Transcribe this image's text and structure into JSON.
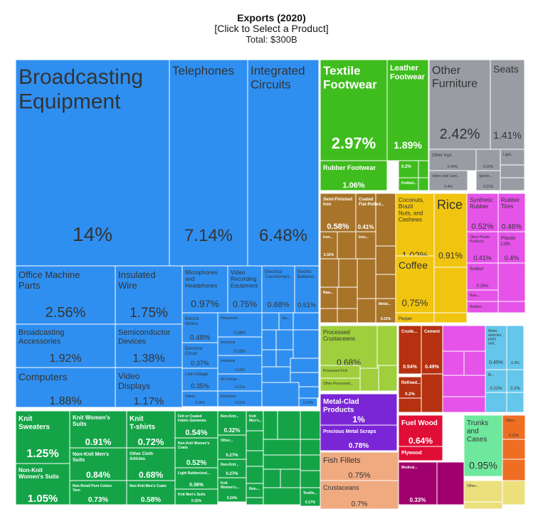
{
  "chart_data": {
    "type": "treemap",
    "title": "Exports (2020)",
    "subtitle": "[Click to Select a Product]",
    "total_label": "Total: $300B",
    "colors": {
      "electronics": "#2f8ff0",
      "textiles": "#14a447",
      "footwear": "#3fbd1e",
      "misc": "#9a9ca3",
      "wood": "#a8742a",
      "vegetables": "#f1c40f",
      "plastics": "#e553e9",
      "animal": "#9fcf3c",
      "minerals": "#b53110",
      "vehicles": "#65c6eb",
      "metals": "#7b26d6",
      "paper": "#e00d36",
      "hides": "#6ee89c",
      "transport": "#ee6e24",
      "fish": "#f0aa80",
      "chemicals": "#a0006d",
      "yellowish": "#ece07d"
    },
    "items": [
      {
        "label": "Broadcasting Equipment",
        "value": "14%",
        "group": "electronics",
        "lx": 0.03,
        "ly": 0.16,
        "fs": 30,
        "vs": 28
      },
      {
        "label": "Telephones",
        "value": "7.14%",
        "group": "electronics",
        "fs": 17,
        "vs": 24
      },
      {
        "label": "Integrated Circuits",
        "value": "6.48%",
        "group": "electronics",
        "fs": 17,
        "vs": 24
      },
      {
        "label": "Office Machine Parts",
        "value": "2.56%",
        "group": "electronics",
        "fs": 13,
        "vs": 20
      },
      {
        "label": "Insulated Wire",
        "value": "1.75%",
        "group": "electronics",
        "fs": 13,
        "vs": 19
      },
      {
        "label": "Broadcasting Accessories",
        "value": "1.92%",
        "group": "electronics",
        "fs": 11,
        "vs": 16
      },
      {
        "label": "Semiconductor Devices",
        "value": "1.38%",
        "group": "electronics",
        "fs": 11,
        "vs": 16
      },
      {
        "label": "Computers",
        "value": "1.88%",
        "group": "electronics",
        "fs": 14,
        "vs": 16
      },
      {
        "label": "Video Displays",
        "value": "1.17%",
        "group": "electronics",
        "fs": 12,
        "vs": 15
      },
      {
        "label": "Microphones and Headphones",
        "value": "0.97%",
        "group": "electronics",
        "fs": 8,
        "vs": 14
      },
      {
        "label": "Video Recording Equipment",
        "value": "0.75%",
        "group": "electronics",
        "fs": 8,
        "vs": 12
      },
      {
        "label": "Electrical Transformers",
        "value": "0.68%",
        "group": "electronics",
        "fs": 6,
        "vs": 11
      },
      {
        "label": "Electric Batteries",
        "value": "0.51%",
        "group": "electronics",
        "fs": 6,
        "vs": 9
      },
      {
        "label": "Electric Motors",
        "value": "0.48%",
        "group": "electronics",
        "fs": 6,
        "vs": 10
      },
      {
        "label": "Electrical Circuit",
        "value": "0.37%",
        "group": "electronics",
        "fs": 6,
        "vs": 9
      },
      {
        "label": "Low-voltage",
        "value": "0.35%",
        "group": "electronics",
        "fs": 6,
        "vs": 9
      },
      {
        "label": "Valves",
        "value": "0.26%",
        "group": "electronics",
        "fs": 5,
        "vs": 5
      },
      {
        "label": "Household",
        "value": "0.28%",
        "group": "electronics",
        "fs": 5,
        "vs": 6
      },
      {
        "label": "Electrical",
        "value": "0.25%",
        "group": "electronics",
        "fs": 5,
        "vs": 6
      },
      {
        "label": "Industrial",
        "value": "0.19%",
        "group": "electronics",
        "fs": 5,
        "vs": 5
      },
      {
        "label": "Air Pumps",
        "value": "0.21%",
        "group": "electronics",
        "fs": 5,
        "vs": 5
      },
      {
        "label": "Electronic",
        "value": "0.21%",
        "group": "electronics",
        "fs": 5,
        "vs": 5
      },
      {
        "label": "Sta...",
        "value": "",
        "group": "electronics",
        "fs": 5,
        "vs": 5
      },
      {
        "label": "",
        "value": "0.22%",
        "group": "electronics",
        "fs": 5,
        "vs": 5
      },
      {
        "label": "Textile Footwear",
        "value": "2.97%",
        "group": "footwear",
        "fs": 17,
        "vs": 22,
        "light": true
      },
      {
        "label": "Leather Footwear",
        "value": "1.89%",
        "group": "footwear",
        "fs": 11,
        "vs": 14,
        "light": true
      },
      {
        "label": "Rubber Footwear",
        "value": "1.06%",
        "group": "footwear",
        "fs": 9,
        "vs": 11,
        "light": true
      },
      {
        "label": "0.2%",
        "value": "",
        "group": "footwear",
        "fs": 6,
        "vs": 6,
        "light": true
      },
      {
        "label": "Knitted...",
        "value": "",
        "group": "footwear",
        "fs": 5,
        "vs": 5,
        "light": true
      },
      {
        "label": "Other Furniture",
        "value": "2.42%",
        "group": "misc",
        "fs": 16,
        "vs": 20
      },
      {
        "label": "Seats",
        "value": "1.41%",
        "group": "misc",
        "fs": 14,
        "vs": 14
      },
      {
        "label": "Other toys",
        "value": "0.44%",
        "group": "misc",
        "fs": 6,
        "vs": 5
      },
      {
        "label": "",
        "value": "0.22%",
        "group": "misc",
        "fs": 5,
        "vs": 5
      },
      {
        "label": "Light...",
        "value": "",
        "group": "misc",
        "fs": 5,
        "vs": 5
      },
      {
        "label": "Video and Card...",
        "value": "0.4%",
        "group": "misc",
        "fs": 5,
        "vs": 5
      },
      {
        "label": "Sports...",
        "value": "0.21%",
        "group": "misc",
        "fs": 5,
        "vs": 5
      },
      {
        "label": "Semi-Finished Iron",
        "value": "0.58%",
        "group": "wood",
        "fs": 6,
        "vs": 11,
        "light": true
      },
      {
        "label": "Coated Flat-Rolled...",
        "value": "0.41%",
        "group": "wood",
        "fs": 6,
        "vs": 8,
        "light": true
      },
      {
        "label": "Iron...",
        "value": "0.32%",
        "group": "wood",
        "fs": 5,
        "vs": 5,
        "light": true
      },
      {
        "label": "Iron...",
        "value": "",
        "group": "wood",
        "fs": 5,
        "vs": 5,
        "light": true
      },
      {
        "label": "Raw...",
        "value": "",
        "group": "wood",
        "fs": 5,
        "vs": 5,
        "light": true
      },
      {
        "label": "Metal...",
        "value": "0.21%",
        "group": "wood",
        "fs": 5,
        "vs": 5,
        "light": true
      },
      {
        "label": "Coconuts, Brazil Nuts, and Cashews",
        "value": "1.02%",
        "group": "vegetables",
        "fs": 8,
        "vs": 13
      },
      {
        "label": "Rice",
        "value": "0.91%",
        "group": "vegetables",
        "fs": 18,
        "vs": 12
      },
      {
        "label": "Coffee",
        "value": "0.75%",
        "group": "vegetables",
        "fs": 14,
        "vs": 13
      },
      {
        "label": "Pepper",
        "value": "",
        "group": "vegetables",
        "fs": 6,
        "vs": 6
      },
      {
        "label": "Synthetic Rubber",
        "value": "0.52%",
        "group": "plastics",
        "fs": 8,
        "vs": 11
      },
      {
        "label": "Rubber Tires",
        "value": "0.46%",
        "group": "plastics",
        "fs": 8,
        "vs": 10
      },
      {
        "label": "Other Plastic Products",
        "value": "0.41%",
        "group": "plastics",
        "fs": 5,
        "vs": 9
      },
      {
        "label": "Plastic Lids",
        "value": "0.4%",
        "group": "plastics",
        "fs": 7,
        "vs": 9
      },
      {
        "label": "Rubber",
        "value": "0.28%",
        "group": "plastics",
        "fs": 6,
        "vs": 6
      },
      {
        "label": "Raw...",
        "value": "",
        "group": "plastics",
        "fs": 5,
        "vs": 5
      },
      {
        "label": "Rubber...",
        "value": "",
        "group": "plastics",
        "fs": 5,
        "vs": 5
      },
      {
        "label": "Processed Crustaceans",
        "value": "0.68%",
        "group": "animal",
        "fs": 8,
        "vs": 12
      },
      {
        "label": "Processed Fish",
        "value": "",
        "group": "animal",
        "fs": 5,
        "vs": 5
      },
      {
        "label": "Other Processed...",
        "value": "",
        "group": "animal",
        "fs": 5,
        "vs": 5
      },
      {
        "label": "Crude...",
        "value": "0.54%",
        "group": "minerals",
        "fs": 6,
        "vs": 7,
        "light": true
      },
      {
        "label": "Cement",
        "value": "0.49%",
        "group": "minerals",
        "fs": 6,
        "vs": 7,
        "light": true
      },
      {
        "label": "Refined...",
        "value": "0.2%",
        "group": "minerals",
        "fs": 6,
        "vs": 6,
        "light": true
      },
      {
        "label": "Motor vehicles; parts and...",
        "value": "0.45%",
        "group": "vehicles",
        "fs": 5,
        "vs": 7
      },
      {
        "label": "",
        "value": "0.3%",
        "group": "vehicles",
        "fs": 5,
        "vs": 5
      },
      {
        "label": "Bi...",
        "value": "0.22%",
        "group": "vehicles",
        "fs": 5,
        "vs": 6
      },
      {
        "label": "",
        "value": "0.2%",
        "group": "vehicles",
        "fs": 5,
        "vs": 6
      },
      {
        "label": "Metal-Clad Products",
        "value": "1%",
        "group": "metals",
        "fs": 10,
        "vs": 12,
        "light": true
      },
      {
        "label": "Precious Metal Scraps",
        "value": "0.78%",
        "group": "metals",
        "fs": 7,
        "vs": 10,
        "light": true
      },
      {
        "label": "Fuel Wood",
        "value": "0.64%",
        "group": "paper",
        "fs": 10,
        "vs": 12,
        "light": true
      },
      {
        "label": "Plywood",
        "value": "",
        "group": "paper",
        "fs": 7,
        "vs": 7,
        "light": true
      },
      {
        "label": "Trunks and Cases",
        "value": "0.95%",
        "group": "hides",
        "fs": 10,
        "vs": 14
      },
      {
        "label": "Other...",
        "value": "0.21%",
        "group": "transport",
        "fs": 5,
        "vs": 5
      },
      {
        "label": "Fish Fillets",
        "value": "0.75%",
        "group": "fish",
        "fs": 11,
        "vs": 11
      },
      {
        "label": "Crustaceans",
        "value": "0.7%",
        "group": "fish",
        "fs": 9,
        "vs": 10
      },
      {
        "label": "Medical...",
        "value": "0.33%",
        "group": "chemicals",
        "fs": 5,
        "vs": 8,
        "light": true
      },
      {
        "label": "Other...",
        "value": "",
        "group": "yellowish",
        "fs": 5,
        "vs": 5
      },
      {
        "label": "Knit Sweaters",
        "value": "1.25%",
        "group": "textiles",
        "fs": 10,
        "vs": 16,
        "light": true
      },
      {
        "label": "Knit Women's Suits",
        "value": "0.91%",
        "group": "textiles",
        "fs": 8,
        "vs": 13,
        "light": true
      },
      {
        "label": "Knit T-shirts",
        "value": "0.72%",
        "group": "textiles",
        "fs": 10,
        "vs": 13,
        "light": true
      },
      {
        "label": "Felt or Coated Fabric Garments",
        "value": "0.54%",
        "group": "textiles",
        "fs": 5,
        "vs": 11,
        "light": true
      },
      {
        "label": "Non-Knit...",
        "value": "0.32%",
        "group": "textiles",
        "fs": 5,
        "vs": 8,
        "light": true
      },
      {
        "label": "Knit Men's...",
        "value": "",
        "group": "textiles",
        "fs": 5,
        "vs": 5,
        "light": true
      },
      {
        "label": "Non-Knit Women's Suits",
        "value": "1.05%",
        "group": "textiles",
        "fs": 8,
        "vs": 15,
        "light": true
      },
      {
        "label": "Non-Knit Men's Suits",
        "value": "0.84%",
        "group": "textiles",
        "fs": 7,
        "vs": 12,
        "light": true
      },
      {
        "label": "Other Cloth Articles",
        "value": "0.68%",
        "group": "textiles",
        "fs": 6,
        "vs": 12,
        "light": true
      },
      {
        "label": "Non-Knit Women's Coats",
        "value": "0.52%",
        "group": "textiles",
        "fs": 5,
        "vs": 10,
        "light": true
      },
      {
        "label": "Other...",
        "value": "0.27%",
        "group": "textiles",
        "fs": 5,
        "vs": 6,
        "light": true
      },
      {
        "label": "Non-Knit...",
        "value": "0.27%",
        "group": "textiles",
        "fs": 5,
        "vs": 6,
        "light": true
      },
      {
        "label": "Non-Retail Pure Cotton Yarn",
        "value": "0.73%",
        "group": "textiles",
        "fs": 5,
        "vs": 10,
        "light": true
      },
      {
        "label": "Non-Knit Men's Coats",
        "value": "0.58%",
        "group": "textiles",
        "fs": 5,
        "vs": 10,
        "light": true
      },
      {
        "label": "Light Rubberized...",
        "value": "0.36%",
        "group": "textiles",
        "fs": 5,
        "vs": 7,
        "light": true
      },
      {
        "label": "Knit Women's...",
        "value": "0.24%",
        "group": "textiles",
        "fs": 5,
        "vs": 5,
        "light": true
      },
      {
        "label": "Knit Men's Suits",
        "value": "0.32%",
        "group": "textiles",
        "fs": 5,
        "vs": 5,
        "light": true
      },
      {
        "label": "Textile...",
        "value": "0.17%",
        "group": "textiles",
        "fs": 5,
        "vs": 5,
        "light": true
      },
      {
        "label": "Non-...",
        "value": "",
        "group": "textiles",
        "fs": 5,
        "vs": 5,
        "light": true
      }
    ]
  }
}
